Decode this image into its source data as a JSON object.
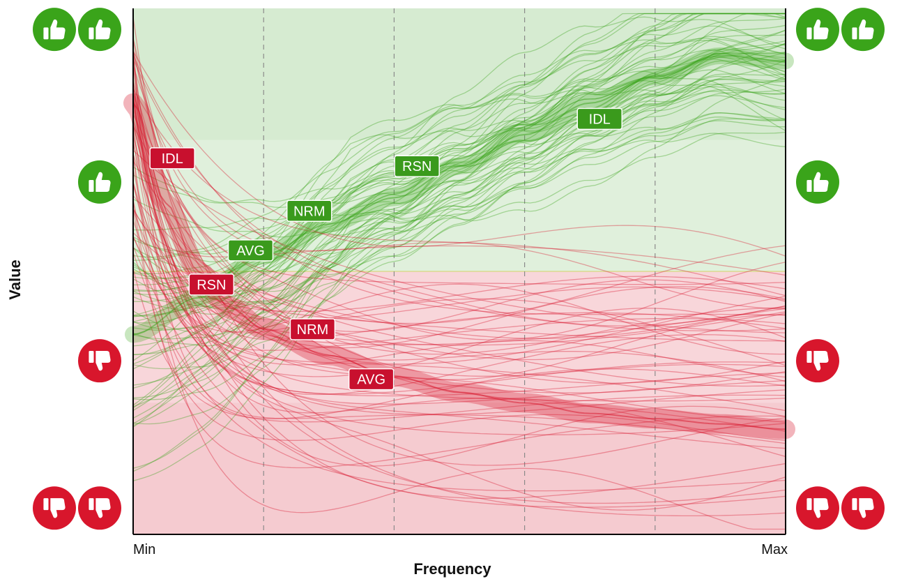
{
  "chart_data": {
    "type": "line",
    "title": "",
    "xlabel": "Frequency",
    "ylabel": "Value",
    "x_ticks": [
      "Min",
      "Max"
    ],
    "xlim": [
      0,
      1
    ],
    "ylim": [
      0,
      1
    ],
    "threshold": 0.5,
    "x_gridlines": [
      0.2,
      0.4,
      0.6,
      0.8
    ],
    "grid": "vertical dashed",
    "icon_levels": [
      {
        "name": "very-good",
        "icon": "double-thumbs-up-icon",
        "value": 0.96,
        "color": "#3aa41a"
      },
      {
        "name": "good",
        "icon": "thumb-up-icon",
        "value": 0.67,
        "color": "#3aa41a"
      },
      {
        "name": "bad",
        "icon": "thumb-down-icon",
        "value": 0.33,
        "color": "#d8162c"
      },
      {
        "name": "very-bad",
        "icon": "double-thumbs-down-icon",
        "value": 0.05,
        "color": "#d8162c"
      }
    ],
    "series": [
      {
        "group": "green",
        "color": "#3aa41a",
        "mean_curve": {
          "x": [
            0,
            0.1,
            0.2,
            0.3,
            0.4,
            0.5,
            0.6,
            0.7,
            0.8,
            0.9,
            1.0
          ],
          "y": [
            0.38,
            0.45,
            0.53,
            0.59,
            0.64,
            0.7,
            0.76,
            0.82,
            0.87,
            0.91,
            0.9
          ]
        },
        "labels": [
          {
            "text": "AVG",
            "x": 0.18,
            "y": 0.54
          },
          {
            "text": "NRM",
            "x": 0.27,
            "y": 0.615
          },
          {
            "text": "RSN",
            "x": 0.435,
            "y": 0.7
          },
          {
            "text": "IDL",
            "x": 0.715,
            "y": 0.79
          }
        ]
      },
      {
        "group": "red",
        "color": "#d8162c",
        "mean_curve": {
          "x": [
            0,
            0.05,
            0.1,
            0.15,
            0.2,
            0.3,
            0.4,
            0.5,
            0.6,
            0.7,
            0.8,
            0.9,
            1.0
          ],
          "y": [
            0.82,
            0.63,
            0.5,
            0.43,
            0.39,
            0.34,
            0.3,
            0.27,
            0.25,
            0.23,
            0.22,
            0.21,
            0.2
          ]
        },
        "labels": [
          {
            "text": "IDL",
            "x": 0.06,
            "y": 0.715
          },
          {
            "text": "RSN",
            "x": 0.12,
            "y": 0.475
          },
          {
            "text": "NRM",
            "x": 0.275,
            "y": 0.39
          },
          {
            "text": "AVG",
            "x": 0.365,
            "y": 0.295
          }
        ]
      }
    ]
  }
}
